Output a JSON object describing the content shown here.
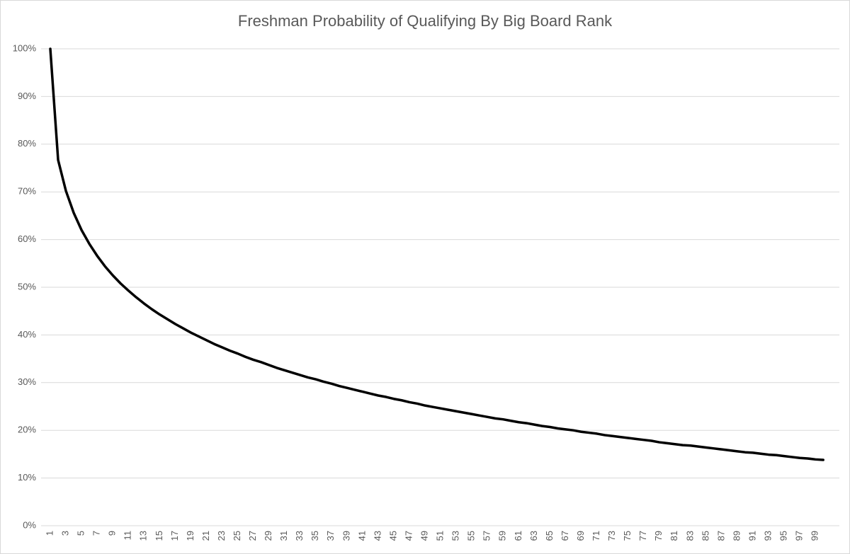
{
  "chart_data": {
    "type": "line",
    "title": "Freshman Probability of Qualifying By Big Board Rank",
    "categories": [
      1,
      null,
      3,
      null,
      5,
      null,
      7,
      null,
      9,
      null,
      11,
      null,
      13,
      null,
      15,
      null,
      17,
      null,
      19,
      null,
      21,
      null,
      23,
      null,
      25,
      null,
      27,
      null,
      29,
      null,
      31,
      null,
      33,
      null,
      35,
      null,
      37,
      null,
      39,
      null,
      41,
      null,
      43,
      null,
      45,
      null,
      47,
      null,
      49,
      null,
      51,
      null,
      53,
      null,
      55,
      null,
      57,
      null,
      59,
      null,
      61,
      null,
      63,
      null,
      65,
      null,
      67,
      null,
      69,
      null,
      71,
      null,
      73,
      null,
      75,
      null,
      77,
      null,
      79,
      null,
      81,
      null,
      83,
      null,
      85,
      null,
      87,
      null,
      89,
      null,
      91,
      null,
      93,
      null,
      95,
      null,
      97,
      null,
      99,
      null
    ],
    "values": [
      100,
      76.7,
      70.2,
      65.6,
      62.0,
      59.1,
      56.6,
      54.4,
      52.5,
      50.8,
      49.3,
      47.9,
      46.6,
      45.4,
      44.3,
      43.3,
      42.3,
      41.4,
      40.5,
      39.7,
      38.9,
      38.1,
      37.4,
      36.7,
      36.1,
      35.4,
      34.8,
      34.3,
      33.7,
      33.1,
      32.6,
      32.1,
      31.6,
      31.1,
      30.7,
      30.2,
      29.8,
      29.3,
      28.9,
      28.5,
      28.1,
      27.7,
      27.3,
      27.0,
      26.6,
      26.3,
      25.9,
      25.6,
      25.2,
      24.9,
      24.6,
      24.3,
      24.0,
      23.7,
      23.4,
      23.1,
      22.8,
      22.5,
      22.3,
      22.0,
      21.7,
      21.5,
      21.2,
      20.9,
      20.7,
      20.4,
      20.2,
      20.0,
      19.7,
      19.5,
      19.3,
      19.0,
      18.8,
      18.6,
      18.4,
      18.2,
      18.0,
      17.8,
      17.5,
      17.3,
      17.1,
      16.9,
      16.8,
      16.6,
      16.4,
      16.2,
      16.0,
      15.8,
      15.6,
      15.4,
      15.3,
      15.1,
      14.9,
      14.8,
      14.6,
      14.4,
      14.2,
      14.1,
      13.9,
      13.8
    ],
    "color": "#000000",
    "ylim": [
      0,
      100
    ],
    "yticks": [
      {
        "value": 0,
        "label": "0%"
      },
      {
        "value": 10,
        "label": "10%"
      },
      {
        "value": 20,
        "label": "20%"
      },
      {
        "value": 30,
        "label": "30%"
      },
      {
        "value": 40,
        "label": "40%"
      },
      {
        "value": 50,
        "label": "50%"
      },
      {
        "value": 60,
        "label": "60%"
      },
      {
        "value": 70,
        "label": "70%"
      },
      {
        "value": 80,
        "label": "80%"
      },
      {
        "value": 90,
        "label": "90%"
      },
      {
        "value": 100,
        "label": "100%"
      }
    ],
    "grid": true
  }
}
